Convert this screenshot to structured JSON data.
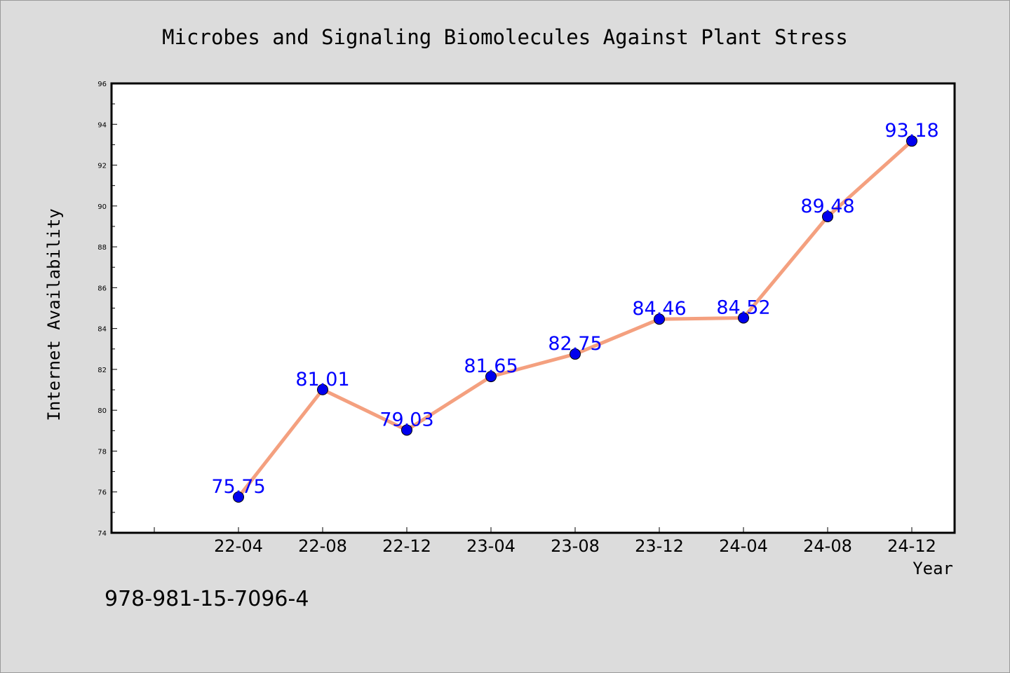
{
  "chart_data": {
    "type": "line",
    "title": "Microbes and Signaling Biomolecules Against Plant Stress",
    "xlabel": "Year",
    "ylabel": "Internet Availability",
    "categories": [
      "22-04",
      "22-08",
      "22-12",
      "23-04",
      "23-08",
      "23-12",
      "24-04",
      "24-08",
      "24-12"
    ],
    "series": [
      {
        "values": [
          75.75,
          81.01,
          79.03,
          81.65,
          82.75,
          84.46,
          84.52,
          89.48,
          93.18
        ],
        "labels": [
          "75.75",
          "81.01",
          "79.03",
          "81.65",
          "82.75",
          "84.46",
          "84.52",
          "89.48",
          "93.18"
        ]
      }
    ],
    "ylim": [
      74,
      96
    ],
    "yticks": [
      "74",
      "76",
      "78",
      "80",
      "82",
      "84",
      "86",
      "88",
      "90",
      "92",
      "94",
      "96"
    ],
    "grid": false,
    "colors": {
      "line": "#f4a07f",
      "marker": "#0000ee",
      "label": "#0000ff",
      "background": "#dcdcdc",
      "plot_background": "#ffffff"
    }
  },
  "footer_text": "978-981-15-7096-4"
}
